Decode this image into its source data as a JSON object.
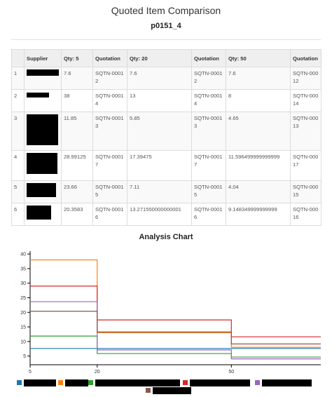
{
  "header": {
    "title": "Quoted Item Comparison",
    "subtitle": "p0151_4"
  },
  "table": {
    "columns": [
      "",
      "Supplier",
      "Qty: 5",
      "Quotation",
      "Qty: 20",
      "Quotation",
      "Qty: 50",
      "Quotation"
    ],
    "rows": [
      {
        "index": "1",
        "supplier": "",
        "q5": "7.6",
        "quote5": "SQTN-00012",
        "q20": "7.6",
        "quote20": "SQTN-00012",
        "q50": "7.6",
        "quote50": "SQTN-00012"
      },
      {
        "index": "2",
        "supplier": "",
        "q5": "38",
        "quote5": "SQTN-00014",
        "q20": "13",
        "quote20": "SQTN-00014",
        "q50": "8",
        "quote50": "SQTN-00014"
      },
      {
        "index": "3",
        "supplier": "",
        "q5": "11.85",
        "quote5": "SQTN-00013",
        "q20": "5.85",
        "quote20": "SQTN-00013",
        "q50": "4.65",
        "quote50": "SQTN-00013"
      },
      {
        "index": "4",
        "supplier": "",
        "q5": "28.99125",
        "quote5": "SQTN-00017",
        "q20": "17.39475",
        "quote20": "SQTN-00017",
        "q50": "11.596499999999999",
        "quote50": "SQTN-00017"
      },
      {
        "index": "5",
        "supplier": "",
        "q5": "23.66",
        "quote5": "SQTN-00015",
        "q20": "7.11",
        "quote20": "SQTN-00015",
        "q50": "4.04",
        "quote50": "SQTN-00015"
      },
      {
        "index": "6",
        "supplier": "",
        "q5": "20.3583",
        "quote5": "SQTN-00016",
        "q20": "13.271550000000001",
        "quote20": "SQTN-00016",
        "q50": "9.148349999999999",
        "quote50": "SQTN-00016"
      }
    ]
  },
  "chart_title": "Analysis Chart",
  "chart_data": {
    "type": "line",
    "title": "Analysis Chart",
    "x": [
      5,
      20,
      50
    ],
    "xlim": [
      5,
      70
    ],
    "ylim": [
      2.5,
      41
    ],
    "y_ticks": [
      5,
      10,
      15,
      20,
      25,
      30,
      35,
      40
    ],
    "x_ticks": [
      5,
      20,
      50
    ],
    "interpolation": "step-after",
    "legend_placement": "bottom",
    "series": [
      {
        "color": "#1f77b4",
        "values": [
          7.6,
          7.6,
          7.6
        ]
      },
      {
        "color": "#ff7f0e",
        "values": [
          38,
          13,
          8
        ]
      },
      {
        "color": "#2ca02c",
        "values": [
          11.85,
          5.85,
          4.65
        ]
      },
      {
        "color": "#d62728",
        "values": [
          28.99125,
          17.39475,
          11.5965
        ]
      },
      {
        "color": "#9467bd",
        "values": [
          23.66,
          7.11,
          4.04
        ]
      },
      {
        "color": "#8c564b",
        "values": [
          20.3583,
          13.27155,
          9.14835
        ]
      }
    ]
  }
}
